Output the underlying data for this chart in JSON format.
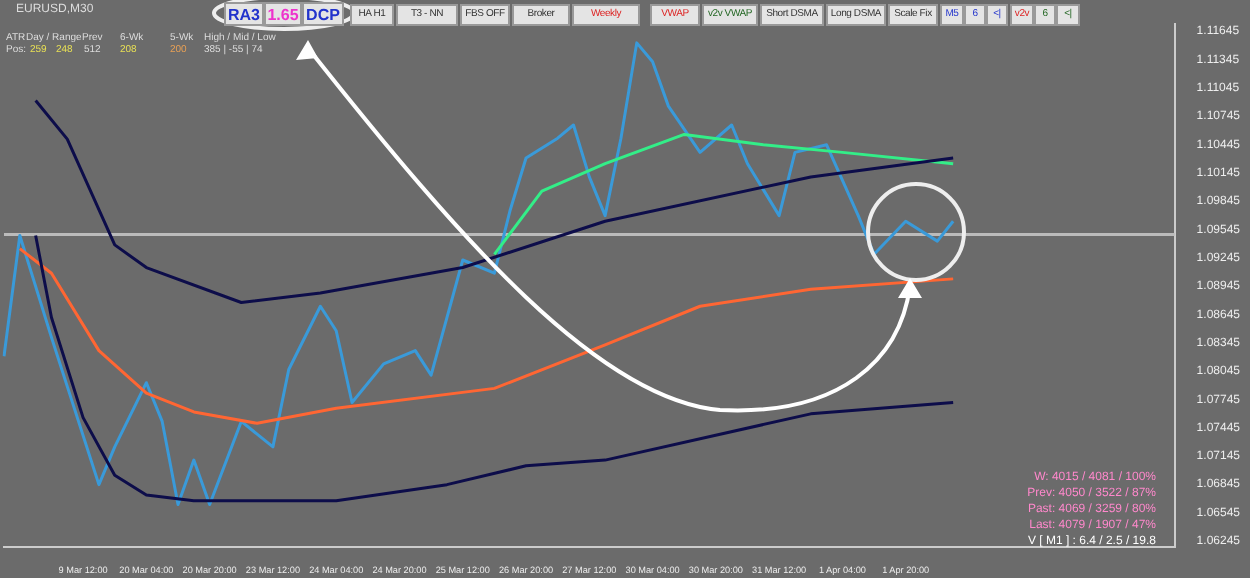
{
  "chart_data": {
    "type": "line",
    "title": "EURUSD,M30",
    "categories": [
      null,
      null,
      null,
      null,
      null,
      "9 Mar 12:00",
      null,
      null,
      null,
      "20 Mar 04:00",
      null,
      null,
      null,
      "20 Mar 20:00",
      null,
      null,
      null,
      "23 Mar 12:00",
      null,
      null,
      null,
      "24 Mar 04:00",
      null,
      null,
      null,
      "24 Mar 20:00",
      null,
      null,
      null,
      "25 Mar 12:00",
      null,
      null,
      null,
      "26 Mar 20:00",
      null,
      null,
      null,
      "27 Mar 12:00",
      null,
      null,
      null,
      "30 Mar 04:00",
      null,
      null,
      null,
      "30 Mar 20:00",
      null,
      null,
      null,
      "31 Mar 12:00",
      null,
      null,
      null,
      "1 Apr 04:00",
      null,
      null,
      null,
      "1 Apr 20:00",
      null,
      null,
      null,
      null,
      null,
      null,
      null,
      null,
      null,
      null,
      null,
      null,
      null,
      null,
      null,
      null,
      null
    ],
    "series": [
      {
        "color": "#0d0d4a",
        "values": [
          null,
          null,
          1.1091,
          null,
          1.105,
          null,
          null,
          1.0938,
          null,
          1.0914,
          null,
          null,
          null,
          null,
          null,
          1.0877,
          null,
          null,
          null,
          null,
          1.0887,
          null,
          null,
          null,
          null,
          null,
          null,
          null,
          null,
          1.0914,
          null,
          null,
          null,
          null,
          null,
          null,
          null,
          null,
          1.0963,
          null,
          null,
          null,
          null,
          null,
          null,
          null,
          null,
          null,
          null,
          null,
          null,
          1.101,
          null,
          null,
          null,
          null,
          null,
          null,
          null,
          null,
          1.103,
          null,
          null,
          null,
          null,
          null,
          null,
          null,
          null,
          null,
          null,
          null,
          null,
          null,
          null
        ]
      },
      {
        "color": "#0d0d4a",
        "values": [
          null,
          null,
          1.0948,
          1.0861,
          null,
          1.0755,
          null,
          1.0694,
          null,
          1.0673,
          null,
          null,
          1.0667,
          null,
          null,
          null,
          null,
          null,
          null,
          null,
          null,
          1.0667,
          null,
          null,
          null,
          null,
          null,
          null,
          1.0684,
          null,
          null,
          null,
          null,
          1.0704,
          null,
          null,
          null,
          null,
          1.071,
          null,
          null,
          null,
          null,
          null,
          null,
          null,
          null,
          null,
          null,
          null,
          null,
          1.0759,
          null,
          null,
          null,
          null,
          null,
          null,
          null,
          null,
          1.0771,
          null,
          null,
          null,
          null,
          null,
          null,
          null,
          null,
          null,
          null,
          null,
          null,
          null,
          null
        ]
      },
      {
        "color": "#ff6633",
        "values": [
          null,
          1.0934,
          null,
          1.0908,
          null,
          null,
          1.0826,
          null,
          null,
          1.0781,
          null,
          null,
          1.0761,
          null,
          null,
          null,
          1.0749,
          null,
          null,
          null,
          null,
          1.0765,
          null,
          null,
          null,
          null,
          null,
          null,
          null,
          null,
          null,
          1.0786,
          null,
          null,
          null,
          null,
          null,
          null,
          1.0832,
          null,
          null,
          null,
          null,
          null,
          1.0873,
          null,
          null,
          null,
          null,
          null,
          null,
          1.0891,
          null,
          null,
          null,
          null,
          null,
          null,
          null,
          null,
          1.0902,
          null,
          null,
          null,
          null,
          null,
          null,
          null,
          null,
          null,
          null,
          null,
          null,
          null,
          null
        ]
      },
      {
        "color": "#33ee88",
        "values": [
          null,
          null,
          null,
          null,
          null,
          null,
          null,
          null,
          null,
          null,
          null,
          null,
          null,
          null,
          null,
          null,
          null,
          null,
          null,
          null,
          null,
          null,
          null,
          null,
          null,
          null,
          null,
          null,
          null,
          null,
          null,
          1.0928,
          null,
          null,
          1.0995,
          null,
          null,
          null,
          1.1024,
          null,
          null,
          null,
          null,
          1.1055,
          null,
          null,
          null,
          null,
          1.1044,
          null,
          null,
          null,
          null,
          1.1036,
          null,
          null,
          null,
          null,
          null,
          null,
          1.1024,
          null,
          null,
          null,
          null,
          null,
          null,
          null,
          null,
          null,
          null,
          null,
          null,
          null,
          null
        ]
      },
      {
        "color": "#3a9ad9",
        "values": [
          1.082,
          1.0948,
          null,
          1.084,
          null,
          null,
          1.0684,
          1.0724,
          null,
          1.0792,
          1.0751,
          1.0663,
          1.071,
          1.0663,
          null,
          1.0751,
          null,
          1.0724,
          1.0806,
          null,
          1.0873,
          1.0847,
          1.0771,
          null,
          1.0812,
          null,
          1.0826,
          1.08,
          1.0861,
          1.0922,
          null,
          1.0908,
          1.0975,
          1.103,
          null,
          1.1051,
          1.1065,
          1.101,
          1.0969,
          1.1051,
          1.1152,
          1.1132,
          1.1085,
          null,
          1.1036,
          null,
          1.1065,
          1.1024,
          null,
          1.0969,
          1.1036,
          null,
          1.1044,
          null,
          1.0969,
          1.0928,
          null,
          1.0963,
          null,
          1.0942,
          1.0963,
          null,
          null,
          null,
          null,
          null,
          null,
          null,
          null,
          null,
          null,
          null,
          null,
          null,
          null
        ]
      }
    ],
    "ylim": [
      1.0618,
      1.1172
    ],
    "yticks": [
      1.06245,
      1.06545,
      1.06845,
      1.07145,
      1.07445,
      1.07745,
      1.08045,
      1.08345,
      1.08645,
      1.08945,
      1.09245,
      1.09545,
      1.09845,
      1.10145,
      1.10445,
      1.10745,
      1.11045,
      1.11345,
      1.11645
    ],
    "ref_lines": [
      {
        "axis": "y",
        "value": 1.0949,
        "color": "#bbbbbb"
      }
    ],
    "grid": false,
    "legend": false,
    "marker": "none",
    "line_style": "solid",
    "annotations": [
      "RA3",
      "1.65",
      "DCP",
      "HA H1",
      "T3 - NN",
      "FBS OFF",
      "Broker",
      "Weekly",
      "VWAP",
      "v2v VWAP",
      "Short DSMA",
      "Long DSMA",
      "Scale Fix",
      "M5",
      "6",
      "<|",
      "v2v",
      "6",
      "<|",
      "ATR",
      "Day / Range",
      "Prev",
      "6-Wk",
      "5-Wk",
      "High / Mid / Low",
      "Pos:",
      "259",
      "248",
      "512",
      "208",
      "200",
      "385 | -55 | 74",
      "W: 4015 / 4081 / 100%",
      "Prev: 4050 / 3522 / 87%",
      "Past: 4069 / 3259 / 80%",
      "Last: 4079 / 1907 / 47%",
      "V [ M1 ] : 6.4 / 2.5 / 19.8"
    ]
  }
}
